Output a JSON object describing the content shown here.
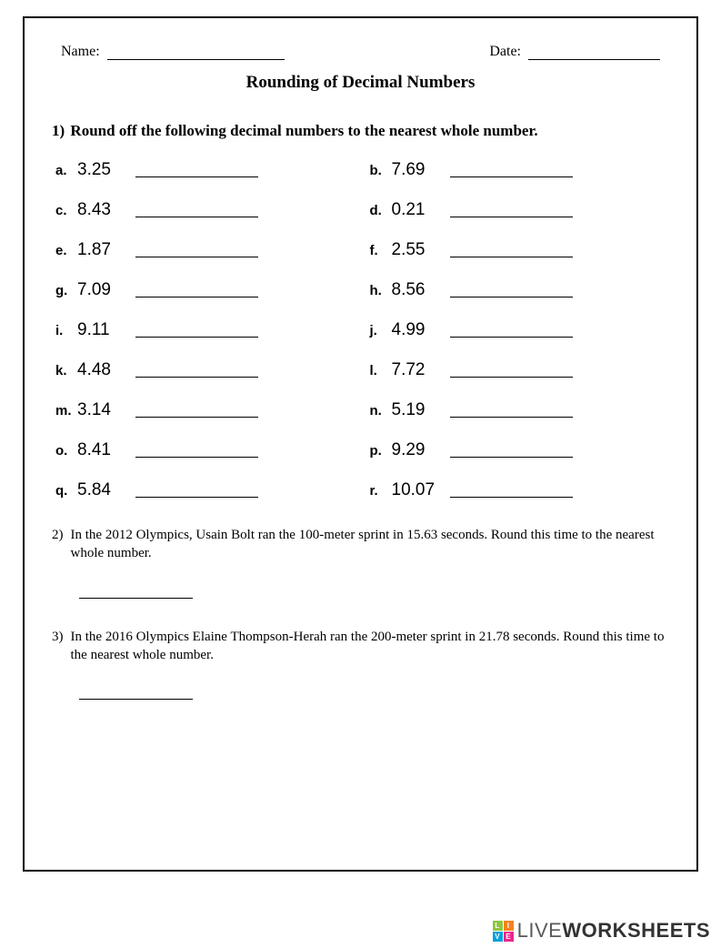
{
  "header": {
    "name_label": "Name:",
    "date_label": "Date:"
  },
  "title": "Rounding of Decimal Numbers",
  "q1": {
    "number": "1)",
    "text": "Round off the following decimal numbers to the nearest whole number."
  },
  "items": [
    {
      "letter": "a.",
      "value": "3.25"
    },
    {
      "letter": "b.",
      "value": "7.69"
    },
    {
      "letter": "c.",
      "value": "8.43"
    },
    {
      "letter": "d.",
      "value": "0.21"
    },
    {
      "letter": "e.",
      "value": "1.87"
    },
    {
      "letter": "f.",
      "value": "2.55"
    },
    {
      "letter": "g.",
      "value": "7.09"
    },
    {
      "letter": "h.",
      "value": "8.56"
    },
    {
      "letter": "i.",
      "value": "9.11"
    },
    {
      "letter": "j.",
      "value": "4.99"
    },
    {
      "letter": "k.",
      "value": "4.48"
    },
    {
      "letter": "l.",
      "value": "7.72"
    },
    {
      "letter": "m.",
      "value": "3.14"
    },
    {
      "letter": "n.",
      "value": "5.19"
    },
    {
      "letter": "o.",
      "value": "8.41"
    },
    {
      "letter": "p.",
      "value": "9.29"
    },
    {
      "letter": "q.",
      "value": "5.84"
    },
    {
      "letter": "r.",
      "value": "10.07"
    }
  ],
  "q2": {
    "number": "2)",
    "text": "In the 2012 Olympics, Usain Bolt ran the 100-meter sprint in 15.63 seconds. Round this time to the nearest whole number."
  },
  "q3": {
    "number": "3)",
    "text": "In the 2016 Olympics Elaine Thompson-Herah ran the 200-meter sprint in 21.78 seconds. Round this time to the nearest whole number."
  },
  "watermark": {
    "brand_light": "LIVE",
    "brand_bold": "WORKSHEETS",
    "logo_colors": [
      "#8fc641",
      "#f58220",
      "#00a0dc",
      "#eb268f"
    ],
    "logo_letters": [
      "L",
      "I",
      "V",
      "E"
    ]
  }
}
